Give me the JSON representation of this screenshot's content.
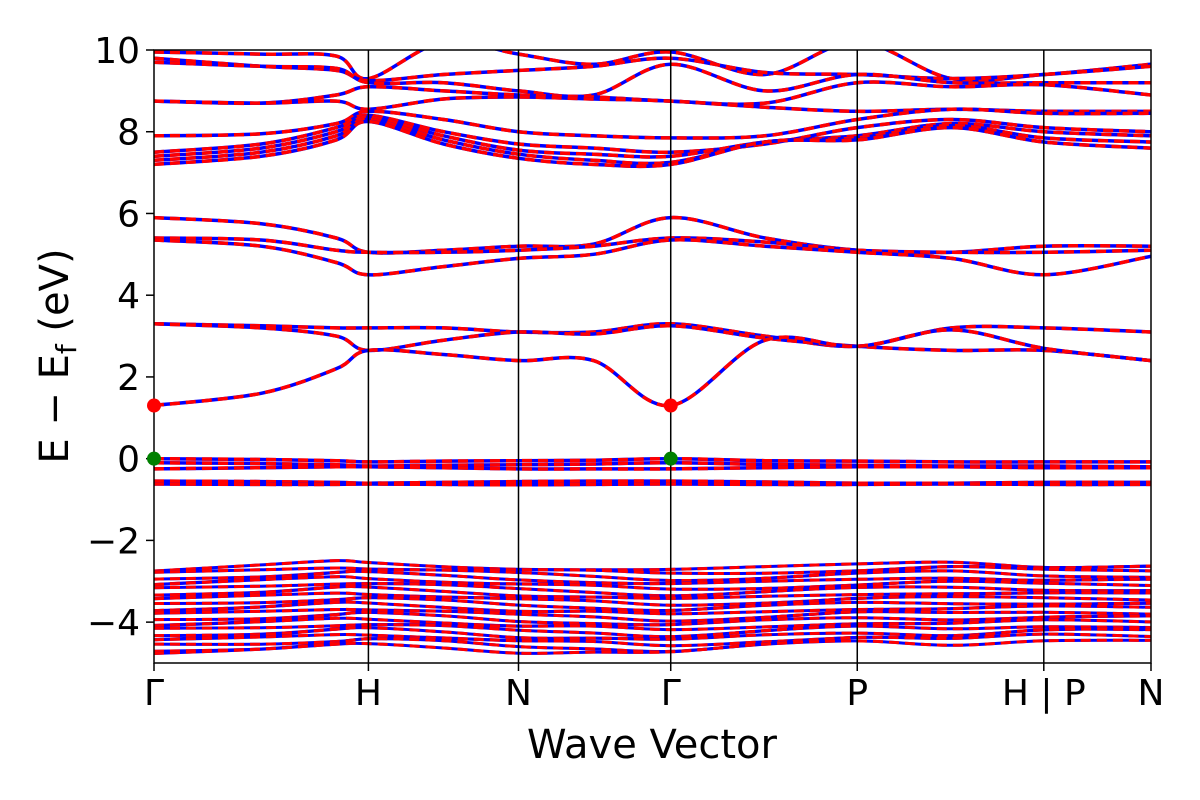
{
  "chart_data": {
    "type": "line",
    "title": "",
    "xlabel": "Wave Vector",
    "ylabel_parts": {
      "main": "E − E",
      "sub": "f",
      "unit": " (eV)"
    },
    "ylim": [
      -5,
      10
    ],
    "yticks": [
      -4,
      -2,
      0,
      2,
      4,
      6,
      8,
      10
    ],
    "ytick_labels": [
      "−4",
      "−2",
      "0",
      "2",
      "4",
      "6",
      "8",
      "10"
    ],
    "grid": false,
    "legend": "none",
    "kpath": [
      {
        "label": "Γ",
        "x": 0
      },
      {
        "label": "H",
        "x": 1.0
      },
      {
        "label": "N",
        "x": 1.7
      },
      {
        "label": "Γ",
        "x": 2.41
      },
      {
        "label": "P",
        "x": 3.28
      },
      {
        "label": "H | P",
        "x": 4.15
      },
      {
        "label": "N",
        "x": 4.65
      }
    ],
    "series_styles": [
      {
        "name": "",
        "color": "#0000ff",
        "style": "solid"
      },
      {
        "name": "",
        "color": "#ff0000",
        "style": "dashed"
      }
    ],
    "bands": {
      "top_manifold": [
        [
          9.95,
          9.9,
          9.85,
          9.3,
          10.2,
          9.9,
          9.65,
          9.95,
          9.4,
          10.2,
          9.3,
          9.4,
          9.65
        ],
        [
          9.8,
          9.6,
          9.5,
          9.25,
          9.4,
          9.5,
          9.6,
          9.8,
          9.45,
          9.4,
          9.3,
          9.4,
          9.6
        ],
        [
          9.7,
          9.6,
          9.55,
          9.2,
          9.2,
          9.0,
          8.9,
          9.65,
          9.0,
          9.4,
          9.2,
          9.2,
          9.2
        ],
        [
          8.75,
          8.7,
          8.9,
          9.1,
          9.0,
          8.9,
          8.85,
          8.75,
          8.7,
          9.2,
          9.1,
          9.15,
          8.9
        ],
        [
          8.75,
          8.7,
          8.75,
          8.55,
          8.8,
          8.85,
          8.8,
          8.75,
          8.6,
          8.5,
          8.55,
          8.5,
          8.5
        ],
        [
          7.9,
          7.95,
          8.2,
          8.5,
          8.3,
          8.0,
          7.9,
          7.85,
          7.9,
          8.3,
          8.55,
          8.45,
          8.45
        ],
        [
          7.5,
          7.7,
          8.1,
          8.4,
          8.0,
          7.7,
          7.6,
          7.5,
          7.7,
          8.1,
          8.3,
          8.1,
          8.0
        ],
        [
          7.4,
          7.6,
          8.0,
          8.35,
          7.9,
          7.55,
          7.45,
          7.4,
          7.75,
          7.9,
          8.2,
          8.0,
          7.9
        ],
        [
          7.3,
          7.5,
          7.9,
          8.3,
          7.8,
          7.45,
          7.3,
          7.25,
          7.75,
          7.85,
          8.15,
          7.85,
          7.75
        ],
        [
          7.2,
          7.4,
          7.8,
          8.25,
          7.7,
          7.35,
          7.2,
          7.2,
          7.75,
          7.8,
          8.1,
          7.75,
          7.6
        ]
      ],
      "mid_upper": [
        [
          5.9,
          5.75,
          5.4,
          5.05,
          5.1,
          5.2,
          5.25,
          5.9,
          5.4,
          5.1,
          5.05,
          5.2,
          5.2
        ],
        [
          5.4,
          5.35,
          5.1,
          5.05,
          5.05,
          5.1,
          5.2,
          5.4,
          5.3,
          5.1,
          5.05,
          5.05,
          5.1
        ],
        [
          5.35,
          5.2,
          4.8,
          4.5,
          4.7,
          4.9,
          5.0,
          5.35,
          5.2,
          5.05,
          4.9,
          4.5,
          4.95
        ]
      ],
      "mid_lower": [
        [
          3.3,
          3.25,
          3.2,
          3.2,
          3.2,
          3.1,
          3.1,
          3.3,
          3.0,
          2.75,
          3.2,
          3.2,
          3.1
        ],
        [
          3.3,
          3.2,
          3.0,
          2.65,
          2.9,
          3.1,
          3.05,
          3.25,
          2.95,
          2.75,
          2.65,
          2.65,
          2.4
        ],
        [
          1.3,
          1.6,
          2.2,
          2.65,
          2.55,
          2.4,
          2.4,
          1.3,
          2.9,
          2.75,
          3.15,
          2.7,
          2.4
        ]
      ],
      "near_ef": [
        [
          0.0,
          -0.02,
          -0.05,
          -0.08,
          -0.06,
          -0.05,
          -0.04,
          0.0,
          -0.05,
          -0.06,
          -0.08,
          -0.08,
          -0.08
        ],
        [
          -0.1,
          -0.12,
          -0.15,
          -0.18,
          -0.16,
          -0.15,
          -0.13,
          -0.1,
          -0.14,
          -0.16,
          -0.18,
          -0.18,
          -0.2
        ],
        [
          -0.25,
          -0.22,
          -0.2,
          -0.2,
          -0.22,
          -0.25,
          -0.25,
          -0.25,
          -0.22,
          -0.2,
          -0.2,
          -0.22,
          -0.22
        ],
        [
          -0.55,
          -0.56,
          -0.58,
          -0.6,
          -0.58,
          -0.56,
          -0.55,
          -0.55,
          -0.57,
          -0.6,
          -0.6,
          -0.58,
          -0.58
        ],
        [
          -0.62,
          -0.63,
          -0.63,
          -0.62,
          -0.63,
          -0.64,
          -0.63,
          -0.62,
          -0.63,
          -0.63,
          -0.62,
          -0.63,
          -0.63
        ]
      ],
      "valence_manifold": {
        "top_edge": [
          -2.75,
          -2.65,
          -2.55,
          -2.55,
          -2.6,
          -2.65,
          -2.7,
          -2.75,
          -2.7,
          -2.6,
          -2.5,
          -2.6,
          -2.6
        ],
        "bottom_edge": [
          -4.75,
          -4.7,
          -4.6,
          -4.55,
          -4.6,
          -4.7,
          -4.7,
          -4.75,
          -4.6,
          -4.5,
          -4.55,
          -4.4,
          -4.4
        ]
      },
      "band_x": [
        0,
        0.5,
        0.85,
        1.0,
        1.35,
        1.7,
        2.05,
        2.41,
        2.85,
        3.28,
        3.72,
        4.15,
        4.65
      ]
    },
    "markers": [
      {
        "x": 0,
        "y": 1.3,
        "color": "#ff0000"
      },
      {
        "x": 2.41,
        "y": 1.3,
        "color": "#ff0000"
      },
      {
        "x": 0,
        "y": 0.0,
        "color": "#008000"
      },
      {
        "x": 2.41,
        "y": 0.0,
        "color": "#008000"
      }
    ]
  }
}
